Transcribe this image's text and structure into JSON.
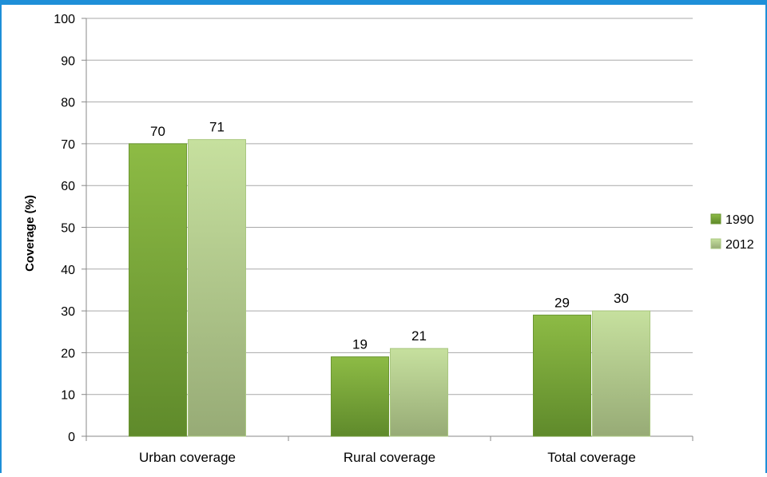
{
  "chart_data": {
    "type": "bar",
    "title": "",
    "xlabel": "",
    "ylabel": "Coverage (%)",
    "ylim": [
      0,
      100
    ],
    "yticks": [
      0,
      10,
      20,
      30,
      40,
      50,
      60,
      70,
      80,
      90,
      100
    ],
    "categories": [
      "Urban coverage",
      "Rural coverage",
      "Total coverage"
    ],
    "series": [
      {
        "name": "1990",
        "values": [
          70,
          19,
          29
        ],
        "color": "#79a83a"
      },
      {
        "name": "2012",
        "values": [
          71,
          21,
          30
        ],
        "color": "#b5d48a"
      }
    ],
    "grid": true,
    "legend_position": "right"
  }
}
